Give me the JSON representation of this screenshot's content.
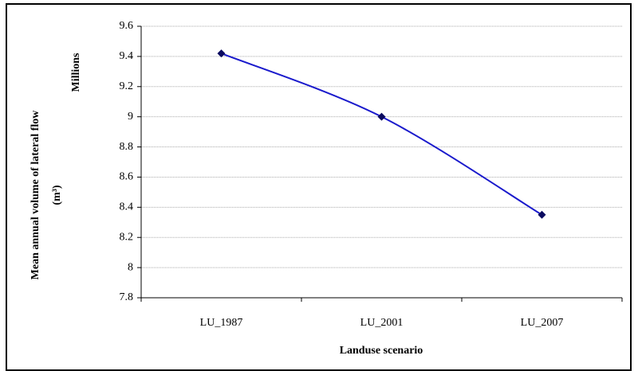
{
  "chart_data": {
    "type": "line",
    "y_label": [
      "Mean annual  volume of lateral flow",
      "(m³)"
    ],
    "y_unit": "Millions",
    "x_label": "Landuse scenario",
    "categories": [
      "LU_1987",
      "LU_2001",
      "LU_2007"
    ],
    "series": [
      {
        "color": "#1a1acc",
        "marker_color": "#0a0a60",
        "values": [
          9.42,
          9.0,
          8.35
        ]
      }
    ],
    "ylim": [
      7.8,
      9.6
    ],
    "yticks": [
      7.8,
      8,
      8.2,
      8.4,
      8.6,
      8.8,
      9,
      9.2,
      9.4,
      9.6
    ],
    "grid": true,
    "smooth": true
  }
}
